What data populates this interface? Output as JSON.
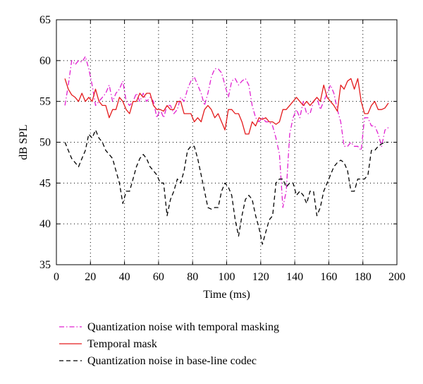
{
  "chart_data": {
    "type": "line",
    "title": "",
    "xlabel": "Time (ms)",
    "ylabel": "dB SPL",
    "xlim": [
      0,
      200
    ],
    "ylim": [
      35,
      65
    ],
    "xticks": [
      0,
      20,
      40,
      60,
      80,
      100,
      120,
      140,
      160,
      180,
      200
    ],
    "yticks": [
      35,
      40,
      45,
      50,
      55,
      60,
      65
    ],
    "grid": true,
    "legend_position": "bottom",
    "series": [
      {
        "name": "Quantization noise with temporal masking",
        "color": "#e020d0",
        "dash": "dashdot",
        "x": [
          5,
          7,
          9,
          11,
          13,
          15,
          17,
          19,
          21,
          23,
          25,
          27,
          29,
          31,
          33,
          35,
          37,
          39,
          41,
          43,
          45,
          47,
          49,
          51,
          53,
          55,
          57,
          59,
          61,
          63,
          65,
          67,
          69,
          71,
          73,
          75,
          77,
          79,
          81,
          83,
          85,
          87,
          89,
          91,
          93,
          95,
          97,
          99,
          101,
          103,
          105,
          107,
          109,
          111,
          113,
          115,
          117,
          119,
          121,
          123,
          125,
          127,
          129,
          131,
          133,
          135,
          137,
          139,
          141,
          143,
          145,
          147,
          149,
          151,
          153,
          155,
          157,
          159,
          161,
          163,
          165,
          167,
          169,
          171,
          173,
          175,
          177,
          179,
          181,
          183,
          185,
          187,
          189,
          191,
          193,
          195
        ],
        "values": [
          54.5,
          57,
          60,
          59.5,
          60,
          59.8,
          60.5,
          59,
          57,
          54.5,
          55,
          55.5,
          56,
          57,
          55,
          56,
          56.5,
          57.5,
          55,
          54.5,
          55,
          56,
          55,
          56,
          55,
          55.5,
          55,
          53,
          54,
          53,
          54.5,
          54.5,
          53.5,
          54,
          55.5,
          55,
          56.5,
          57.5,
          58,
          57,
          56,
          54.5,
          56,
          58,
          59,
          59,
          58.5,
          57,
          55.5,
          57.5,
          57.8,
          57,
          57.5,
          57.8,
          57,
          54.5,
          53,
          52.5,
          53,
          52.5,
          52.5,
          52,
          50.5,
          48.5,
          42,
          44,
          51,
          53,
          54,
          53,
          55,
          53.5,
          53.5,
          55,
          55.5,
          54,
          55,
          56,
          57,
          56,
          54,
          52.5,
          49.5,
          49.5,
          50,
          49.5,
          49.5,
          49,
          53,
          53,
          52,
          52,
          51,
          49.5,
          51.5,
          51.8
        ]
      },
      {
        "name": "Temporal mask",
        "color": "#e41a1c",
        "dash": "solid",
        "x": [
          5,
          7,
          9,
          11,
          13,
          15,
          17,
          19,
          21,
          23,
          25,
          27,
          29,
          31,
          33,
          35,
          37,
          39,
          41,
          43,
          45,
          47,
          49,
          51,
          53,
          55,
          57,
          59,
          61,
          63,
          65,
          67,
          69,
          71,
          73,
          75,
          77,
          79,
          81,
          83,
          85,
          87,
          89,
          91,
          93,
          95,
          97,
          99,
          101,
          103,
          105,
          107,
          109,
          111,
          113,
          115,
          117,
          119,
          121,
          123,
          125,
          127,
          129,
          131,
          133,
          135,
          137,
          139,
          141,
          143,
          145,
          147,
          149,
          151,
          153,
          155,
          157,
          159,
          161,
          163,
          165,
          167,
          169,
          171,
          173,
          175,
          177,
          179,
          181,
          183,
          185,
          187,
          189,
          191,
          193,
          195
        ],
        "values": [
          57.8,
          56.5,
          55.8,
          55.5,
          55,
          56,
          55,
          55.5,
          55,
          56.5,
          55,
          54.5,
          54.5,
          53,
          54,
          54,
          55.5,
          55,
          54,
          53.5,
          55,
          55,
          56,
          55.5,
          56,
          56,
          54.5,
          54,
          54,
          53.8,
          54.5,
          54,
          54,
          55,
          55,
          53.5,
          53.5,
          53.5,
          52.5,
          53,
          52.5,
          54,
          54.5,
          54,
          53,
          53.5,
          52.5,
          51.5,
          54,
          54,
          53.5,
          53.5,
          52.5,
          51,
          51,
          52.5,
          52,
          53,
          52.8,
          53,
          52.5,
          52.5,
          52.2,
          52.5,
          54,
          54,
          54.5,
          55,
          55.5,
          55,
          54.5,
          55,
          54.5,
          55,
          55.5,
          55,
          57,
          55.5,
          55,
          54.5,
          53.8,
          57,
          56.5,
          57.5,
          57.8,
          56.5,
          57.8,
          55,
          53.5,
          53.5,
          54.5,
          55,
          54,
          54,
          54.2,
          54.8
        ]
      },
      {
        "name": "Quantization noise in base-line codec",
        "color": "#000000",
        "dash": "dashed",
        "x": [
          5,
          7,
          9,
          11,
          13,
          15,
          17,
          19,
          21,
          23,
          25,
          27,
          29,
          31,
          33,
          35,
          37,
          39,
          41,
          43,
          45,
          47,
          49,
          51,
          53,
          55,
          57,
          59,
          61,
          63,
          65,
          67,
          69,
          71,
          73,
          75,
          77,
          79,
          81,
          83,
          85,
          87,
          89,
          91,
          93,
          95,
          97,
          99,
          101,
          103,
          105,
          107,
          109,
          111,
          113,
          115,
          117,
          119,
          121,
          123,
          125,
          127,
          129,
          131,
          133,
          135,
          137,
          139,
          141,
          143,
          145,
          147,
          149,
          151,
          153,
          155,
          157,
          159,
          161,
          163,
          165,
          167,
          169,
          171,
          173,
          175,
          177,
          179,
          181,
          183,
          185,
          187,
          189,
          191,
          193,
          195
        ],
        "values": [
          50,
          49,
          48,
          47.5,
          47,
          48,
          49,
          51,
          50.5,
          51.5,
          50.5,
          50,
          49,
          48.5,
          48,
          46.5,
          45,
          42.5,
          44,
          44,
          45.5,
          47,
          48,
          48.5,
          48,
          47,
          46.5,
          46,
          45,
          45,
          41,
          43,
          44,
          45.5,
          45,
          46.5,
          49,
          49.5,
          49.5,
          48,
          46,
          44,
          42,
          41.8,
          42,
          42,
          44,
          45,
          44.5,
          43.5,
          40.5,
          38.5,
          41,
          43,
          43.5,
          43,
          41,
          39.5,
          37.5,
          39,
          40.5,
          41,
          45,
          45.5,
          45.5,
          44.5,
          45,
          45,
          43.5,
          44,
          43.5,
          42.5,
          44,
          44,
          41,
          42,
          44,
          45,
          46,
          47,
          47.5,
          47.8,
          47.5,
          46.5,
          44,
          44,
          45.5,
          45.5,
          45.5,
          46,
          49,
          49,
          49.5,
          49.8,
          50,
          50
        ]
      }
    ]
  }
}
